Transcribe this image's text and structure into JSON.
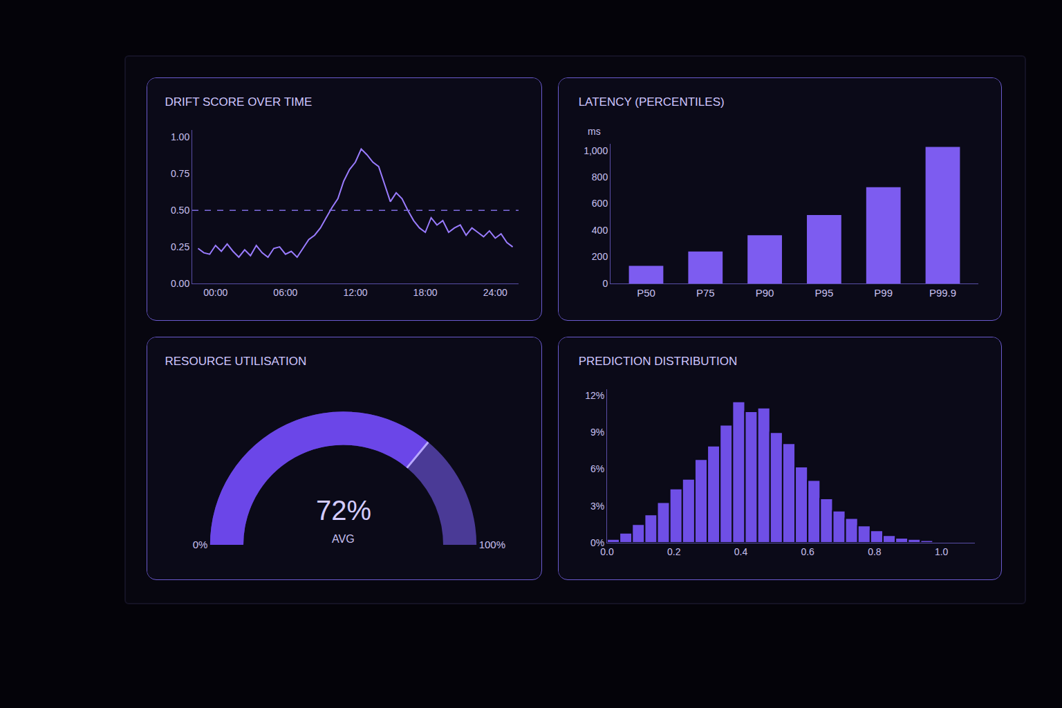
{
  "chart_data": [
    {
      "type": "line",
      "title": "DRIFT SCORE OVER TIME",
      "color": "#9a7cff",
      "threshold": 0.5,
      "x": [
        -1.5,
        -1,
        -0.5,
        0,
        0.5,
        1,
        1.5,
        2,
        2.5,
        3,
        3.5,
        4,
        4.5,
        5,
        5.5,
        6,
        6.5,
        7,
        7.5,
        8,
        8.5,
        9,
        9.5,
        10,
        10.5,
        11,
        11.5,
        12,
        12.5,
        13,
        13.5,
        14,
        14.5,
        15,
        15.5,
        16,
        16.5,
        17,
        17.5,
        18,
        18.5,
        19,
        19.5,
        20,
        20.5,
        21,
        21.5,
        22,
        22.5,
        23,
        23.5,
        24,
        24.5,
        25,
        25.5
      ],
      "values": [
        0.24,
        0.21,
        0.2,
        0.26,
        0.22,
        0.27,
        0.22,
        0.18,
        0.23,
        0.19,
        0.26,
        0.21,
        0.18,
        0.24,
        0.25,
        0.2,
        0.22,
        0.18,
        0.24,
        0.3,
        0.33,
        0.38,
        0.45,
        0.52,
        0.58,
        0.7,
        0.78,
        0.83,
        0.92,
        0.88,
        0.83,
        0.8,
        0.68,
        0.56,
        0.62,
        0.58,
        0.5,
        0.43,
        0.38,
        0.35,
        0.45,
        0.4,
        0.43,
        0.35,
        0.38,
        0.4,
        0.33,
        0.38,
        0.35,
        0.32,
        0.36,
        0.31,
        0.34,
        0.28,
        0.25
      ],
      "xlim": [
        -2,
        26
      ],
      "xticks": [
        {
          "value": 0,
          "label": "00:00"
        },
        {
          "value": 6,
          "label": "06:00"
        },
        {
          "value": 12,
          "label": "12:00"
        },
        {
          "value": 18,
          "label": "18:00"
        },
        {
          "value": 24,
          "label": "24:00"
        }
      ],
      "ylim": [
        0,
        1.05
      ],
      "yticks": [
        {
          "value": 0,
          "label": "0.00"
        },
        {
          "value": 0.25,
          "label": "0.25"
        },
        {
          "value": 0.5,
          "label": "0.50"
        },
        {
          "value": 0.75,
          "label": "0.75"
        },
        {
          "value": 1,
          "label": "1.00"
        }
      ],
      "grid": false
    },
    {
      "type": "bar",
      "title": "LATENCY (PERCENTILES)",
      "ylabel": "ms",
      "color": "#7d5cf0",
      "categories": [
        "P50",
        "P75",
        "P90",
        "P95",
        "P99",
        "P99.9"
      ],
      "values": [
        133,
        240,
        362,
        515,
        724,
        1026
      ],
      "ylim": [
        0,
        1050
      ],
      "yticks": [
        0,
        200,
        400,
        600,
        800,
        {
          "value": 1000,
          "label": "1,000"
        }
      ],
      "grid": false
    },
    {
      "type": "gauge",
      "title": "RESOURCE UTILISATION",
      "color": "#6b46e8",
      "value": 72,
      "value_label": "72%",
      "subtitle": "AVG",
      "ylim": [
        0,
        100
      ],
      "yticks": [
        {
          "value": 0,
          "label": "0%"
        },
        {
          "value": 100,
          "label": "100%"
        }
      ]
    },
    {
      "type": "histogram",
      "title": "PREDICTION DISTRIBUTION",
      "color": "#6f4fe6",
      "bins": [
        0,
        0.0375,
        0.075,
        0.1125,
        0.15,
        0.1875,
        0.225,
        0.2625,
        0.3,
        0.3375,
        0.375,
        0.4125,
        0.45,
        0.4875,
        0.525,
        0.5625,
        0.6,
        0.6375,
        0.675,
        0.7125,
        0.75,
        0.7875,
        0.825,
        0.8625,
        0.9,
        0.9375,
        0.975,
        1.0125,
        1.05
      ],
      "values": [
        0.3,
        0.8,
        1.5,
        2.3,
        3.3,
        4.4,
        5.2,
        6.8,
        7.9,
        9.6,
        11.5,
        10.7,
        11.0,
        9.0,
        8.1,
        6.2,
        5.1,
        3.6,
        2.6,
        2.0,
        1.4,
        1.0,
        0.6,
        0.4,
        0.3,
        0.2,
        0.1,
        0.05
      ],
      "xlim": [
        0,
        1.1
      ],
      "xticks": [
        {
          "value": 0,
          "label": "0.0"
        },
        0.2,
        0.4,
        0.6,
        0.8,
        {
          "value": 1,
          "label": "1.0"
        }
      ],
      "ylim": [
        0,
        12.5
      ],
      "yticks": [
        {
          "value": 0,
          "label": "0%"
        },
        {
          "value": 3,
          "label": "3%"
        },
        {
          "value": 6,
          "label": "6%"
        },
        {
          "value": 9,
          "label": "9%"
        },
        {
          "value": 12,
          "label": "12%"
        }
      ],
      "grid": false
    }
  ]
}
